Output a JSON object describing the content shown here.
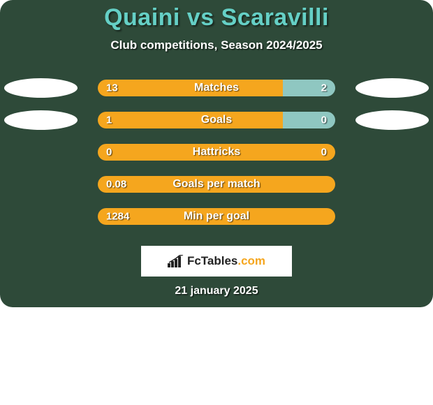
{
  "card": {
    "background_color": "#2e4a39",
    "title_color": "#65d0c6",
    "text_color": "#ffffff",
    "title_fontsize": 34,
    "subtitle_fontsize": 17,
    "label_fontsize": 16,
    "value_fontsize": 15
  },
  "title": "Quaini vs Scaravilli",
  "subtitle": "Club competitions, Season 2024/2025",
  "bar_colors": {
    "left": "#f5a61e",
    "right": "#f5a61e",
    "right_accent": "#8fc7c1"
  },
  "stats": [
    {
      "label": "Matches",
      "left_value": "13",
      "right_value": "2",
      "left_pct": 78,
      "right_pct": 22,
      "right_fill": "#8fc7c1",
      "show_left_oval": true,
      "show_right_oval": true
    },
    {
      "label": "Goals",
      "left_value": "1",
      "right_value": "0",
      "left_pct": 78,
      "right_pct": 22,
      "right_fill": "#8fc7c1",
      "show_left_oval": true,
      "show_right_oval": true
    },
    {
      "label": "Hattricks",
      "left_value": "0",
      "right_value": "0",
      "left_pct": 100,
      "right_pct": 0,
      "right_fill": "#8fc7c1",
      "show_left_oval": false,
      "show_right_oval": false
    },
    {
      "label": "Goals per match",
      "left_value": "0.08",
      "right_value": "",
      "left_pct": 100,
      "right_pct": 0,
      "right_fill": "#8fc7c1",
      "show_left_oval": false,
      "show_right_oval": false
    },
    {
      "label": "Min per goal",
      "left_value": "1284",
      "right_value": "",
      "left_pct": 100,
      "right_pct": 0,
      "right_fill": "#8fc7c1",
      "show_left_oval": false,
      "show_right_oval": false
    }
  ],
  "brand": {
    "name": "FcTables",
    "suffix": ".com",
    "icon_color": "#222222"
  },
  "date": "21 january 2025"
}
